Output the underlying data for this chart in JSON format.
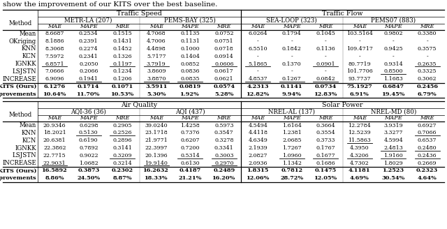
{
  "title_text": "show the improvement of our KITS over the best baseline.",
  "top_section_label": "Traffic Speed",
  "top_right_section_label": "Traffic Flow",
  "bottom_section_label": "Air Quality",
  "bottom_right_section_label": "Solar Power",
  "top_datasets": [
    "METR-LA (207)",
    "PEMS-BAY (325)",
    "SEA-LOOP (323)",
    "PEMS07 (883)"
  ],
  "bottom_datasets": [
    "AQI-36 (36)",
    "AQI (437)",
    "NREL-AL (137)",
    "NREL-MD (80)"
  ],
  "metrics": [
    "MAE",
    "MAPE",
    "MRE"
  ],
  "methods_top": [
    "Mean",
    "OKriging",
    "KNN",
    "KCN",
    "IGNKK",
    "LSJSTN",
    "INCREASE"
  ],
  "methods_bottom": [
    "Mean",
    "KNN",
    "KCN",
    "IGNKK",
    "LSJSTN",
    "INCREASE"
  ],
  "top_data": {
    "Mean": [
      [
        "8.6687",
        "0.2534",
        "0.1515"
      ],
      [
        "4.7068",
        "0.1135",
        "0.0752"
      ],
      [
        "6.0264",
        "0.1794",
        "0.1045"
      ],
      [
        "103.5164",
        "0.9802",
        "0.3380"
      ]
    ],
    "OKriging": [
      [
        "8.1886",
        "0.2391",
        "0.1431"
      ],
      [
        "4.7006",
        "0.1131",
        "0.0751"
      ],
      [
        "-",
        "-",
        "-"
      ],
      [
        "-",
        "-",
        "-"
      ]
    ],
    "KNN": [
      [
        "8.3068",
        "0.2274",
        "0.1452"
      ],
      [
        "4.4898",
        "0.1000",
        "0.0718"
      ],
      [
        "6.5510",
        "0.1842",
        "0.1136"
      ],
      [
        "109.4717",
        "0.9425",
        "0.3575"
      ]
    ],
    "KCN": [
      [
        "7.5972",
        "0.2341",
        "0.1326"
      ],
      [
        "5.7177",
        "0.1404",
        "0.0914"
      ],
      [
        "-",
        "-",
        "-"
      ],
      [
        "-",
        "-",
        "-"
      ]
    ],
    "IGNKK": [
      [
        "6.8571",
        "0.2050",
        "0.1197"
      ],
      [
        "3.7919",
        "0.0852",
        "0.0606"
      ],
      [
        "5.1865",
        "0.1370",
        "0.0901"
      ],
      [
        "80.7719",
        "0.9314",
        "0.2635"
      ]
    ],
    "LSJSTN": [
      [
        "7.0666",
        "0.2066",
        "0.1234"
      ],
      [
        "3.8609",
        "0.0836",
        "0.0617"
      ],
      [
        "-",
        "-",
        "-"
      ],
      [
        "101.7706",
        "0.8500",
        "0.3325"
      ]
    ],
    "INCREASE": [
      [
        "6.9096",
        "0.1941",
        "0.1206"
      ],
      [
        "3.8870",
        "0.0835",
        "0.0621"
      ],
      [
        "4.8537",
        "0.1267",
        "0.0842"
      ],
      [
        "93.7737",
        "1.1683",
        "0.3062"
      ]
    ]
  },
  "kits_top": [
    [
      "6.1276",
      "0.1714",
      "0.1071"
    ],
    [
      "3.5911",
      "0.0819",
      "0.0574"
    ],
    [
      "4.2313",
      "0.1141",
      "0.0734"
    ],
    [
      "75.1927",
      "0.6847",
      "0.2456"
    ]
  ],
  "improvements_top": [
    [
      "10.64%",
      "11.70%",
      "10.53%"
    ],
    [
      "5.30%",
      "1.92%",
      "5.28%"
    ],
    [
      "12.82%",
      "9.94%",
      "12.83%"
    ],
    [
      "6.91%",
      "19.45%",
      "6.79%"
    ]
  ],
  "bottom_data": {
    "Mean": [
      [
        "20.9346",
        "0.6298",
        "0.2905"
      ],
      [
        "39.0240",
        "1.4258",
        "0.5973"
      ],
      [
        "4.5494",
        "1.6164",
        "0.3664"
      ],
      [
        "12.2784",
        "3.9319",
        "0.6927"
      ]
    ],
    "KNN": [
      [
        "18.2021",
        "0.5130",
        "0.2526"
      ],
      [
        "23.1718",
        "0.7376",
        "0.3547"
      ],
      [
        "4.4118",
        "1.2381",
        "0.3554"
      ],
      [
        "12.5239",
        "3.3277",
        "0.7066"
      ]
    ],
    "KCN": [
      [
        "20.6381",
        "0.6190",
        "0.2896"
      ],
      [
        "21.9771",
        "0.6207",
        "0.3278"
      ],
      [
        "4.6349",
        "2.0685",
        "0.3733"
      ],
      [
        "11.5863",
        "4.5994",
        "0.6537"
      ]
    ],
    "IGNKK": [
      [
        "22.3862",
        "0.7892",
        "0.3141"
      ],
      [
        "22.3997",
        "0.7200",
        "0.3341"
      ],
      [
        "2.1939",
        "1.7267",
        "0.1767"
      ],
      [
        "4.3950",
        "2.4813",
        "0.2480"
      ]
    ],
    "LSJSTN": [
      [
        "22.7715",
        "0.9022",
        "0.3209"
      ],
      [
        "20.1396",
        "0.5314",
        "0.3003"
      ],
      [
        "2.0827",
        "1.0960",
        "0.1677"
      ],
      [
        "4.3206",
        "1.9160",
        "0.2436"
      ]
    ],
    "INCREASE": [
      [
        "22.9031",
        "1.0682",
        "0.3214"
      ],
      [
        "19.9140",
        "0.6130",
        "0.2970"
      ],
      [
        "2.0936",
        "1.1342",
        "0.1686"
      ],
      [
        "4.7302",
        "1.8029",
        "0.2669"
      ]
    ]
  },
  "kits_bottom": [
    [
      "16.5892",
      "0.3873",
      "0.2302"
    ],
    [
      "16.2632",
      "0.4187",
      "0.2489"
    ],
    [
      "1.8315",
      "0.7812",
      "0.1475"
    ],
    [
      "4.1181",
      "1.2523",
      "0.2323"
    ]
  ],
  "improvements_bottom": [
    [
      "8.86%",
      "24.50%",
      "8.87%"
    ],
    [
      "18.33%",
      "21.21%",
      "16.20%"
    ],
    [
      "12.06%",
      "28.72%",
      "12.05%"
    ],
    [
      "4.69%",
      "30.54%",
      "4.64%"
    ]
  ],
  "underline_top": {
    "IGNKK": [
      [
        0,
        2
      ],
      [
        0,
        2
      ],
      [
        0,
        2
      ],
      [
        2
      ]
    ],
    "LSJSTN": [
      [],
      [],
      [],
      [
        1
      ]
    ],
    "INCREASE": [
      [
        1
      ],
      [
        0,
        1
      ],
      [
        0,
        1,
        2
      ],
      []
    ]
  },
  "underline_bottom": {
    "KNN": [
      [
        1,
        2
      ],
      [],
      [],
      [
        2
      ]
    ],
    "KCN": [
      [],
      [],
      [],
      [
        0
      ]
    ],
    "IGNKK": [
      [],
      [],
      [],
      [
        1,
        2
      ]
    ],
    "LSJSTN": [
      [
        2
      ],
      [
        1,
        2
      ],
      [
        1,
        2
      ],
      [
        0,
        1,
        2
      ]
    ],
    "INCREASE": [
      [
        0
      ],
      [
        0,
        2
      ],
      [],
      []
    ]
  },
  "fig_width": 6.4,
  "fig_height": 3.28,
  "dpi": 100
}
